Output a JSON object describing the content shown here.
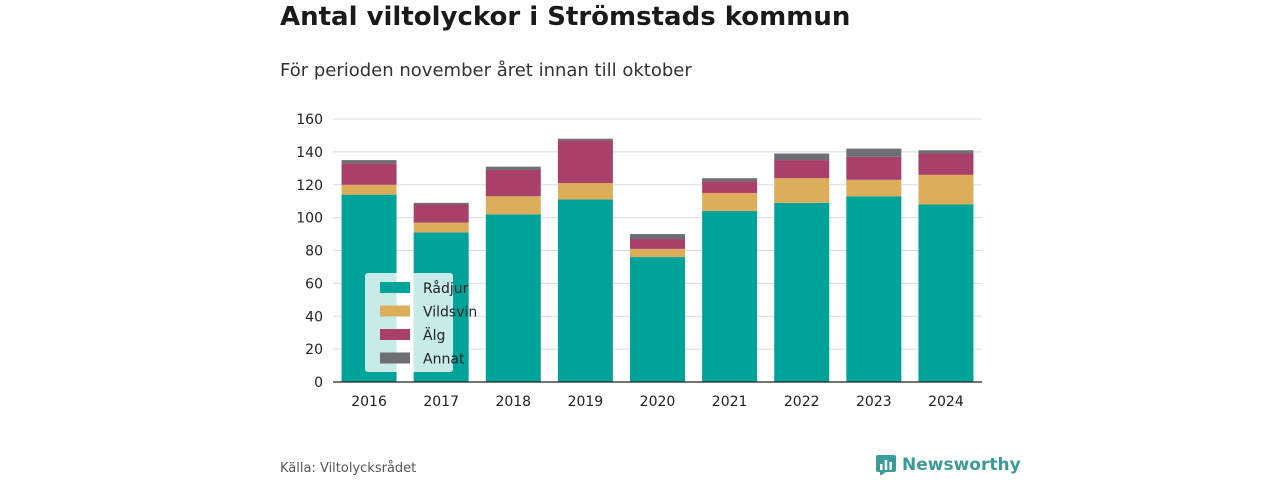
{
  "header": {
    "title": "Antal viltolyckor i Strömstads kommun",
    "subtitle": "För perioden november året innan till oktober"
  },
  "footer": {
    "source": "Källa: Viltolycksrådet",
    "brand": "Newsworthy",
    "brand_icon": "bar-chart-logo-icon"
  },
  "colors": {
    "Rådjur": "#00a39a",
    "Vildsvin": "#ddae5a",
    "Älg": "#a9406a",
    "Annat": "#6e6e75",
    "brand": "#3b9b96"
  },
  "chart_data": {
    "type": "bar",
    "stacked": true,
    "categories": [
      "2016",
      "2017",
      "2018",
      "2019",
      "2020",
      "2021",
      "2022",
      "2023",
      "2024"
    ],
    "series": [
      {
        "name": "Rådjur",
        "values": [
          114,
          91,
          102,
          111,
          76,
          104,
          109,
          113,
          108
        ]
      },
      {
        "name": "Vildsvin",
        "values": [
          6,
          6,
          11,
          10,
          5,
          11,
          15,
          10,
          18
        ]
      },
      {
        "name": "Älg",
        "values": [
          13,
          11,
          16,
          26,
          6,
          7,
          11,
          14,
          13
        ]
      },
      {
        "name": "Annat",
        "values": [
          2,
          1,
          2,
          1,
          3,
          2,
          4,
          5,
          2
        ]
      }
    ],
    "ylim": [
      0,
      160
    ],
    "yticks": [
      0,
      20,
      40,
      60,
      80,
      100,
      120,
      140,
      160
    ],
    "grid": true,
    "legend_position": "bottom-left inside plot"
  }
}
